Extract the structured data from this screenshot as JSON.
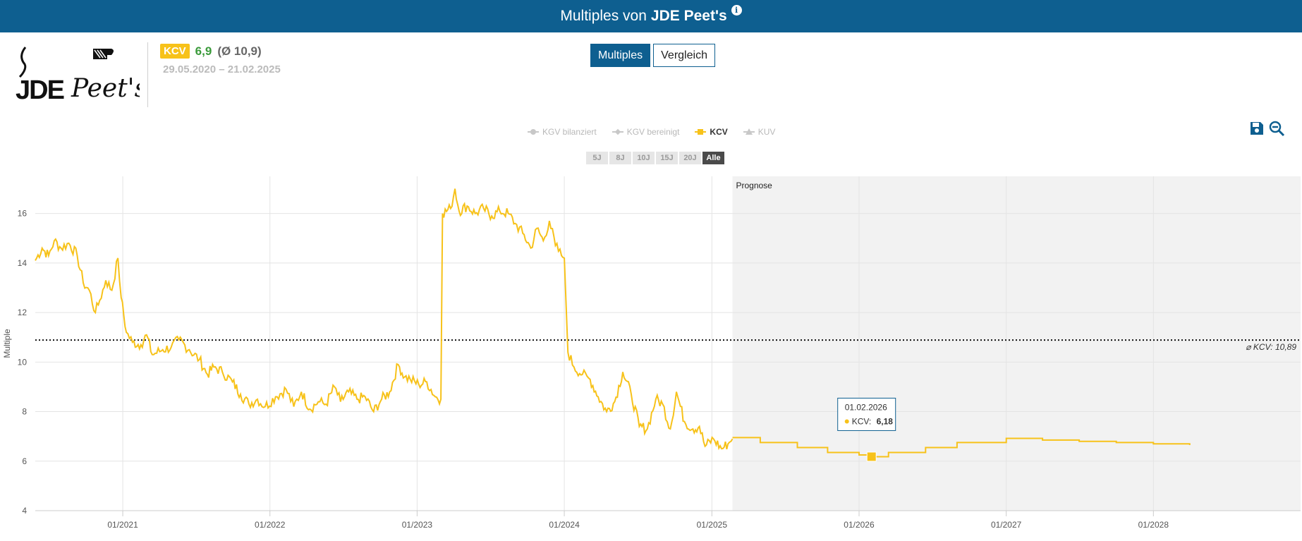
{
  "header": {
    "title_prefix": "Multiples von",
    "company": "JDE Peet's",
    "info_icon": "info-icon"
  },
  "logo": {
    "text_left": "JDE",
    "text_right": "Peet's",
    "icon": "jde-peets-logo"
  },
  "metric": {
    "badge": "KCV",
    "value": "6,9",
    "average": "(Ø 10,9)",
    "dates": "29.05.2020 – 21.02.2025"
  },
  "tabs": [
    {
      "label": "Multiples",
      "active": true
    },
    {
      "label": "Vergleich",
      "active": false
    }
  ],
  "legend": [
    {
      "label": "KGV bilanziert",
      "symbol": "circle",
      "active": false
    },
    {
      "label": "KGV bereinigt",
      "symbol": "diamond",
      "active": false
    },
    {
      "label": "KCV",
      "symbol": "square",
      "active": true
    },
    {
      "label": "KUV",
      "symbol": "triangle",
      "active": false
    }
  ],
  "ranges": [
    {
      "label": "5J",
      "active": false
    },
    {
      "label": "8J",
      "active": false
    },
    {
      "label": "10J",
      "active": false
    },
    {
      "label": "15J",
      "active": false
    },
    {
      "label": "20J",
      "active": false
    },
    {
      "label": "Alle",
      "active": true
    }
  ],
  "toolbar": {
    "save_icon": "save-icon",
    "zoom_out_icon": "zoom-out-icon"
  },
  "colors": {
    "accent": "#0e5f90",
    "series": "#f7c21a",
    "positive": "#3a9a3a"
  },
  "chart_data": {
    "type": "line",
    "ylabel": "Multiple",
    "ylim": [
      4,
      17.5
    ],
    "yticks": [
      4,
      6,
      8,
      10,
      12,
      14,
      16
    ],
    "xlim": [
      "2020-05-29",
      "2028-12-31"
    ],
    "xticks": [
      "2021-01-01",
      "2022-01-01",
      "2023-01-01",
      "2024-01-01",
      "2025-01-01",
      "2026-01-01",
      "2027-01-01",
      "2028-01-01"
    ],
    "xtick_labels": [
      "01/2021",
      "01/2022",
      "01/2023",
      "01/2024",
      "01/2025",
      "01/2026",
      "01/2027",
      "01/2028"
    ],
    "forecast_start": "2025-02-21",
    "forecast_label": "Prognose",
    "average": {
      "value": 10.89,
      "label": "⌀ KCV: 10,89"
    },
    "series": [
      {
        "name": "KCV",
        "historical": [
          [
            "2020-05-29",
            14.1
          ],
          [
            "2020-06-15",
            14.6
          ],
          [
            "2020-07-01",
            14.3
          ],
          [
            "2020-07-15",
            14.9
          ],
          [
            "2020-08-01",
            14.6
          ],
          [
            "2020-08-20",
            14.8
          ],
          [
            "2020-09-10",
            14.3
          ],
          [
            "2020-09-25",
            13.2
          ],
          [
            "2020-10-10",
            12.9
          ],
          [
            "2020-10-25",
            12.0
          ],
          [
            "2020-11-05",
            12.5
          ],
          [
            "2020-11-20",
            13.3
          ],
          [
            "2020-12-05",
            12.9
          ],
          [
            "2020-12-20",
            14.2
          ],
          [
            "2020-12-28",
            12.6
          ],
          [
            "2021-01-10",
            11.2
          ],
          [
            "2021-01-25",
            10.8
          ],
          [
            "2021-02-15",
            10.7
          ],
          [
            "2021-03-01",
            11.1
          ],
          [
            "2021-03-15",
            10.3
          ],
          [
            "2021-04-10",
            10.5
          ],
          [
            "2021-05-01",
            10.6
          ],
          [
            "2021-05-20",
            10.9
          ],
          [
            "2021-06-15",
            10.5
          ],
          [
            "2021-07-10",
            10.1
          ],
          [
            "2021-07-30",
            9.5
          ],
          [
            "2021-08-15",
            9.8
          ],
          [
            "2021-09-05",
            9.6
          ],
          [
            "2021-09-30",
            9.2
          ],
          [
            "2021-10-20",
            8.7
          ],
          [
            "2021-11-10",
            8.3
          ],
          [
            "2021-12-01",
            8.5
          ],
          [
            "2021-12-20",
            8.2
          ],
          [
            "2022-01-15",
            8.6
          ],
          [
            "2022-02-10",
            8.9
          ],
          [
            "2022-03-01",
            8.2
          ],
          [
            "2022-03-20",
            8.8
          ],
          [
            "2022-04-10",
            8.1
          ],
          [
            "2022-05-01",
            8.4
          ],
          [
            "2022-05-20",
            8.3
          ],
          [
            "2022-06-10",
            9.0
          ],
          [
            "2022-06-25",
            8.4
          ],
          [
            "2022-07-15",
            8.8
          ],
          [
            "2022-08-05",
            8.5
          ],
          [
            "2022-08-25",
            8.6
          ],
          [
            "2022-09-15",
            8.0
          ],
          [
            "2022-10-05",
            8.5
          ],
          [
            "2022-10-25",
            8.8
          ],
          [
            "2022-11-15",
            9.9
          ],
          [
            "2022-12-01",
            9.4
          ],
          [
            "2022-12-15",
            9.3
          ],
          [
            "2023-01-05",
            9.1
          ],
          [
            "2023-01-25",
            9.2
          ],
          [
            "2023-02-15",
            8.6
          ],
          [
            "2023-03-01",
            8.5
          ],
          [
            "2023-03-05",
            16.0
          ],
          [
            "2023-03-25",
            16.2
          ],
          [
            "2023-04-05",
            17.0
          ],
          [
            "2023-04-15",
            16.1
          ],
          [
            "2023-05-05",
            16.3
          ],
          [
            "2023-05-25",
            16.0
          ],
          [
            "2023-06-15",
            16.2
          ],
          [
            "2023-07-05",
            15.9
          ],
          [
            "2023-07-25",
            16.1
          ],
          [
            "2023-08-15",
            16.0
          ],
          [
            "2023-09-01",
            15.6
          ],
          [
            "2023-09-20",
            15.2
          ],
          [
            "2023-10-10",
            14.6
          ],
          [
            "2023-10-25",
            15.4
          ],
          [
            "2023-11-10",
            14.9
          ],
          [
            "2023-11-25",
            15.7
          ],
          [
            "2023-12-10",
            14.7
          ],
          [
            "2023-12-25",
            14.3
          ],
          [
            "2024-01-01",
            14.2
          ],
          [
            "2024-01-10",
            10.4
          ],
          [
            "2024-01-25",
            9.8
          ],
          [
            "2024-02-15",
            9.5
          ],
          [
            "2024-03-05",
            9.3
          ],
          [
            "2024-03-25",
            8.6
          ],
          [
            "2024-04-15",
            8.0
          ],
          [
            "2024-05-05",
            8.4
          ],
          [
            "2024-05-25",
            9.6
          ],
          [
            "2024-06-15",
            8.7
          ],
          [
            "2024-07-05",
            7.4
          ],
          [
            "2024-07-25",
            7.3
          ],
          [
            "2024-08-15",
            8.5
          ],
          [
            "2024-09-01",
            8.3
          ],
          [
            "2024-09-20",
            7.3
          ],
          [
            "2024-10-05",
            8.8
          ],
          [
            "2024-10-25",
            7.6
          ],
          [
            "2024-11-15",
            7.3
          ],
          [
            "2024-12-01",
            7.4
          ],
          [
            "2024-12-15",
            6.6
          ],
          [
            "2025-01-05",
            6.9
          ],
          [
            "2025-01-25",
            6.5
          ],
          [
            "2025-02-10",
            6.7
          ],
          [
            "2025-02-21",
            6.9
          ]
        ],
        "forecast": [
          [
            "2025-02-21",
            6.95
          ],
          [
            "2025-05-01",
            6.75
          ],
          [
            "2025-08-01",
            6.55
          ],
          [
            "2025-10-15",
            6.35
          ],
          [
            "2026-01-01",
            6.25
          ],
          [
            "2026-02-01",
            6.18
          ],
          [
            "2026-03-15",
            6.35
          ],
          [
            "2026-06-15",
            6.55
          ],
          [
            "2026-09-01",
            6.75
          ],
          [
            "2027-01-01",
            6.92
          ],
          [
            "2027-04-01",
            6.85
          ],
          [
            "2027-07-01",
            6.8
          ],
          [
            "2027-10-01",
            6.75
          ],
          [
            "2028-01-01",
            6.7
          ],
          [
            "2028-03-31",
            6.65
          ]
        ]
      }
    ],
    "tooltip": {
      "date": "01.02.2026",
      "label": "KCV:",
      "value": "6,18",
      "x": "2026-02-01",
      "y": 6.18
    }
  }
}
